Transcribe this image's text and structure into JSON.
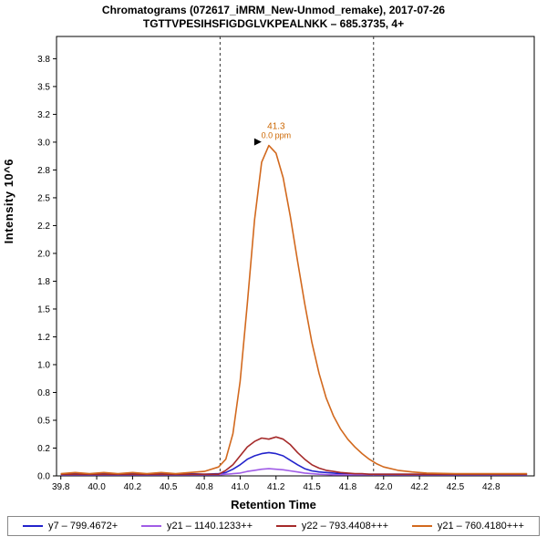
{
  "header": {
    "title_line1": "Chromatograms (072617_iMRM_New-Unmod_remake), 2017-07-26",
    "title_line2": "TGTTVPESIHSFIGDGLVKPEALNKK – 685.3735, 4+"
  },
  "chart_data": {
    "type": "line",
    "title": "Chromatograms (072617_iMRM_New-Unmod_remake), 2017-07-26",
    "subtitle": "TGTTVPESIHSFIGDGLVKPEALNKK – 685.3735, 4+",
    "xlabel": "Retention Time",
    "ylabel": "Intensity 10^6",
    "xlim": [
      39.72,
      43.05
    ],
    "ylim": [
      0,
      3.95
    ],
    "grid": false,
    "legend_position": "bottom",
    "x_ticks": [
      {
        "v": 39.75,
        "label": "39.8"
      },
      {
        "v": 40.0,
        "label": "40.0"
      },
      {
        "v": 40.25,
        "label": "40.2"
      },
      {
        "v": 40.5,
        "label": "40.5"
      },
      {
        "v": 40.75,
        "label": "40.8"
      },
      {
        "v": 41.0,
        "label": "41.0"
      },
      {
        "v": 41.25,
        "label": "41.2"
      },
      {
        "v": 41.5,
        "label": "41.5"
      },
      {
        "v": 41.75,
        "label": "41.8"
      },
      {
        "v": 42.0,
        "label": "42.0"
      },
      {
        "v": 42.25,
        "label": "42.2"
      },
      {
        "v": 42.5,
        "label": "42.5"
      },
      {
        "v": 42.75,
        "label": "42.8"
      }
    ],
    "y_ticks": [
      {
        "v": 0.0,
        "label": "0.0"
      },
      {
        "v": 0.25,
        "label": "0.2"
      },
      {
        "v": 0.5,
        "label": "0.5"
      },
      {
        "v": 0.75,
        "label": "0.8"
      },
      {
        "v": 1.0,
        "label": "1.0"
      },
      {
        "v": 1.25,
        "label": "1.2"
      },
      {
        "v": 1.5,
        "label": "1.5"
      },
      {
        "v": 1.75,
        "label": "1.8"
      },
      {
        "v": 2.0,
        "label": "2.0"
      },
      {
        "v": 2.25,
        "label": "2.2"
      },
      {
        "v": 2.5,
        "label": "2.5"
      },
      {
        "v": 2.75,
        "label": "2.8"
      },
      {
        "v": 3.0,
        "label": "3.0"
      },
      {
        "v": 3.25,
        "label": "3.2"
      },
      {
        "v": 3.5,
        "label": "3.5"
      },
      {
        "v": 3.75,
        "label": "3.8"
      }
    ],
    "boundaries": [
      40.86,
      41.93
    ],
    "annotation": {
      "x": 41.2,
      "y": 2.97,
      "rt_label": "41.3",
      "ppm_label": "0.0 ppm",
      "color": "#CC6600"
    },
    "x": [
      39.75,
      39.85,
      39.95,
      40.05,
      40.15,
      40.25,
      40.35,
      40.45,
      40.55,
      40.65,
      40.75,
      40.85,
      40.9,
      40.95,
      41.0,
      41.05,
      41.1,
      41.15,
      41.2,
      41.25,
      41.3,
      41.35,
      41.4,
      41.45,
      41.5,
      41.55,
      41.6,
      41.65,
      41.7,
      41.75,
      41.8,
      41.85,
      41.9,
      41.95,
      42.0,
      42.1,
      42.2,
      42.3,
      42.5,
      42.7,
      42.9,
      43.0
    ],
    "series": [
      {
        "id": "y7-1plus",
        "label": "y7 – 799.4672+",
        "color": "#2323CC",
        "values": [
          0.015,
          0.02,
          0.015,
          0.02,
          0.015,
          0.02,
          0.015,
          0.02,
          0.015,
          0.02,
          0.015,
          0.02,
          0.03,
          0.06,
          0.1,
          0.15,
          0.18,
          0.2,
          0.21,
          0.2,
          0.18,
          0.14,
          0.1,
          0.065,
          0.045,
          0.035,
          0.03,
          0.025,
          0.02,
          0.02,
          0.015,
          0.015,
          0.015,
          0.015,
          0.015,
          0.015,
          0.015,
          0.015,
          0.015,
          0.015,
          0.015,
          0.015
        ]
      },
      {
        "id": "y21-2plus",
        "label": "y21 – 1140.1233++",
        "color": "#A05CE6",
        "values": [
          0.01,
          0.01,
          0.01,
          0.01,
          0.01,
          0.01,
          0.01,
          0.01,
          0.01,
          0.01,
          0.01,
          0.01,
          0.015,
          0.02,
          0.025,
          0.04,
          0.05,
          0.06,
          0.065,
          0.06,
          0.055,
          0.045,
          0.035,
          0.025,
          0.02,
          0.015,
          0.012,
          0.01,
          0.01,
          0.01,
          0.01,
          0.01,
          0.01,
          0.01,
          0.01,
          0.01,
          0.01,
          0.01,
          0.01,
          0.01,
          0.01,
          0.01
        ]
      },
      {
        "id": "y22-3plus",
        "label": "y22 – 793.4408+++",
        "color": "#A52A2A",
        "values": [
          0.015,
          0.015,
          0.015,
          0.015,
          0.015,
          0.015,
          0.015,
          0.015,
          0.015,
          0.015,
          0.015,
          0.015,
          0.05,
          0.1,
          0.18,
          0.26,
          0.31,
          0.34,
          0.33,
          0.35,
          0.33,
          0.28,
          0.21,
          0.15,
          0.1,
          0.07,
          0.05,
          0.04,
          0.03,
          0.025,
          0.02,
          0.02,
          0.015,
          0.015,
          0.015,
          0.015,
          0.015,
          0.015,
          0.015,
          0.015,
          0.015,
          0.015
        ]
      },
      {
        "id": "y21-3plus",
        "label": "y21 – 760.4180+++",
        "color": "#D2691E",
        "values": [
          0.02,
          0.03,
          0.02,
          0.03,
          0.02,
          0.03,
          0.02,
          0.03,
          0.02,
          0.03,
          0.04,
          0.08,
          0.15,
          0.38,
          0.85,
          1.55,
          2.3,
          2.82,
          2.97,
          2.9,
          2.68,
          2.33,
          1.93,
          1.55,
          1.2,
          0.92,
          0.7,
          0.54,
          0.42,
          0.33,
          0.26,
          0.2,
          0.15,
          0.11,
          0.08,
          0.05,
          0.035,
          0.025,
          0.02,
          0.02,
          0.02,
          0.02
        ]
      }
    ]
  }
}
